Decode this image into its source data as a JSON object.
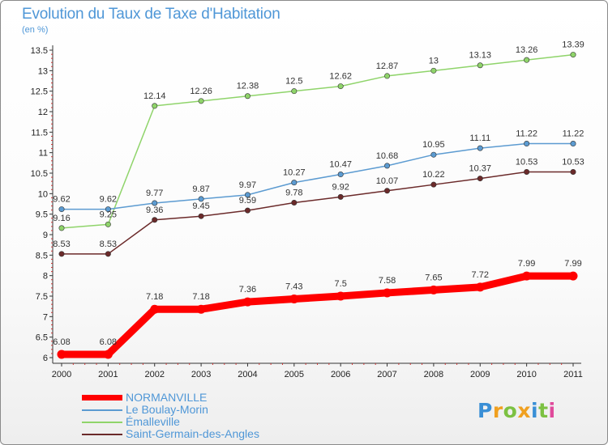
{
  "title": "Evolution du Taux de Taxe d'Habitation",
  "subtitle": "(en %)",
  "logo": {
    "letters": [
      "P",
      "r",
      "o",
      "x",
      "i",
      "t",
      "i"
    ],
    "colors": [
      "#3a8fd6",
      "#f0a020",
      "#7cc142",
      "#f0a020",
      "#3a8fd6",
      "#7cc142",
      "#e04a9b"
    ]
  },
  "chart_data": {
    "type": "line",
    "categories": [
      "2000",
      "2001",
      "2002",
      "2003",
      "2004",
      "2005",
      "2006",
      "2007",
      "2008",
      "2009",
      "2010",
      "2011"
    ],
    "ylim": [
      6,
      13.5
    ],
    "yticks": [
      "6",
      "6.5",
      "7",
      "7.5",
      "8",
      "8.5",
      "9",
      "9.5",
      "10",
      "10.5",
      "11",
      "11.5",
      "12",
      "12.5",
      "13",
      "13.5"
    ],
    "grid": false,
    "legend_position": "bottom-left",
    "series": [
      {
        "name": "NORMANVILLE",
        "color": "#ff0000",
        "values": [
          6.08,
          6.08,
          7.18,
          7.18,
          7.36,
          7.43,
          7.5,
          7.58,
          7.65,
          7.72,
          7.99,
          7.99
        ]
      },
      {
        "name": "Le Boulay-Morin",
        "color": "#5c9bd1",
        "values": [
          9.62,
          9.62,
          9.77,
          9.87,
          9.97,
          10.27,
          10.47,
          10.68,
          10.95,
          11.11,
          11.22,
          11.22
        ]
      },
      {
        "name": "Émalleville",
        "color": "#8fd46a",
        "values": [
          9.16,
          9.25,
          12.14,
          12.26,
          12.38,
          12.5,
          12.62,
          12.87,
          13,
          13.13,
          13.26,
          13.39
        ]
      },
      {
        "name": "Saint-Germain-des-Angles",
        "color": "#6b2a2a",
        "values": [
          8.53,
          8.53,
          9.36,
          9.45,
          9.59,
          9.78,
          9.92,
          10.07,
          10.22,
          10.37,
          10.53,
          10.53
        ]
      }
    ]
  }
}
